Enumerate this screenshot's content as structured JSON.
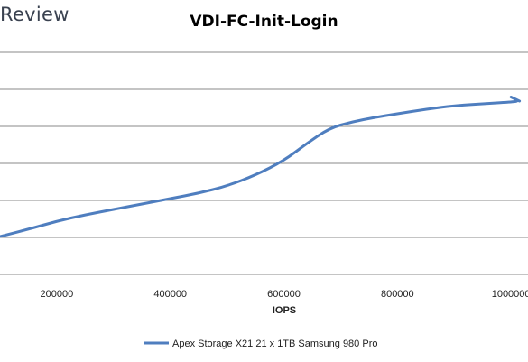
{
  "header": {
    "brand": "Review"
  },
  "chart_data": {
    "type": "line",
    "title": "VDI-FC-Init-Login",
    "xlabel": "IOPS",
    "ylabel": "",
    "xlim": [
      100000,
      1030000
    ],
    "x_ticks": [
      200000,
      400000,
      600000,
      800000,
      1000000
    ],
    "x_tick_labels": [
      "200000",
      "400000",
      "600000",
      "800000",
      "1000000"
    ],
    "grid": true,
    "legend_position": "bottom",
    "series": [
      {
        "name": "Apex Storage X21 21 x 1TB Samsung 980 Pro",
        "color": "#4f7ebf",
        "x": [
          100000,
          150000,
          200000,
          250000,
          300000,
          350000,
          400000,
          450000,
          500000,
          550000,
          600000,
          640000,
          680000,
          720000,
          760000,
          800000,
          850000,
          900000,
          950000,
          1000000,
          1015000,
          995000,
          1015000
        ]
      }
    ]
  }
}
